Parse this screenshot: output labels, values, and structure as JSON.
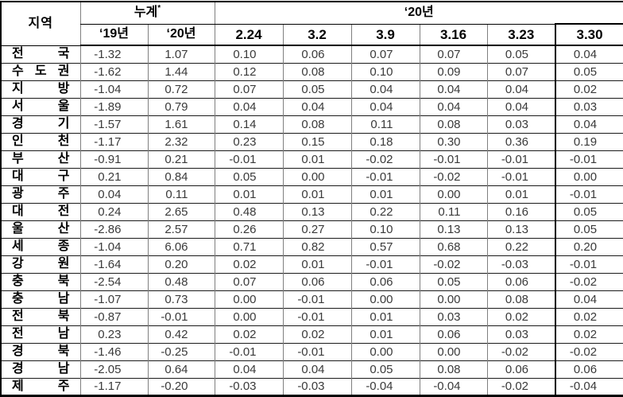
{
  "table": {
    "corner_header": "지역",
    "group_headers": {
      "cumulative": "누계",
      "cumulative_note_mark": "*",
      "year_2020": "‘20년"
    },
    "sub_headers": [
      "‘19년",
      "‘20년",
      "2.24",
      "3.2",
      "3.9",
      "3.16",
      "3.23",
      "3.30"
    ],
    "rows": [
      {
        "region": "전국",
        "values": [
          "-1.32",
          "1.07",
          "0.10",
          "0.06",
          "0.07",
          "0.07",
          "0.05",
          "0.04"
        ]
      },
      {
        "region": "수도권",
        "values": [
          "-1.62",
          "1.44",
          "0.12",
          "0.08",
          "0.10",
          "0.09",
          "0.07",
          "0.05"
        ]
      },
      {
        "region": "지방",
        "values": [
          "-1.04",
          "0.72",
          "0.07",
          "0.05",
          "0.04",
          "0.04",
          "0.04",
          "0.02"
        ]
      },
      {
        "region": "서울",
        "values": [
          "-1.89",
          "0.79",
          "0.04",
          "0.04",
          "0.04",
          "0.04",
          "0.04",
          "0.03"
        ]
      },
      {
        "region": "경기",
        "values": [
          "-1.57",
          "1.61",
          "0.14",
          "0.08",
          "0.11",
          "0.08",
          "0.03",
          "0.04"
        ]
      },
      {
        "region": "인천",
        "values": [
          "-1.17",
          "2.32",
          "0.23",
          "0.15",
          "0.18",
          "0.30",
          "0.36",
          "0.19"
        ]
      },
      {
        "region": "부산",
        "values": [
          "-0.91",
          "0.21",
          "-0.01",
          "0.01",
          "-0.02",
          "-0.01",
          "-0.01",
          "-0.01"
        ]
      },
      {
        "region": "대구",
        "values": [
          "0.21",
          "0.84",
          "0.05",
          "0.00",
          "-0.01",
          "-0.02",
          "-0.01",
          "0.00"
        ]
      },
      {
        "region": "광주",
        "values": [
          "0.04",
          "0.11",
          "0.01",
          "0.01",
          "0.01",
          "0.00",
          "0.01",
          "-0.01"
        ]
      },
      {
        "region": "대전",
        "values": [
          "0.24",
          "2.65",
          "0.48",
          "0.13",
          "0.22",
          "0.11",
          "0.16",
          "0.05"
        ]
      },
      {
        "region": "울산",
        "values": [
          "-2.86",
          "2.57",
          "0.26",
          "0.27",
          "0.10",
          "0.13",
          "0.13",
          "0.05"
        ]
      },
      {
        "region": "세종",
        "values": [
          "-1.04",
          "6.06",
          "0.71",
          "0.82",
          "0.57",
          "0.68",
          "0.22",
          "0.20"
        ]
      },
      {
        "region": "강원",
        "values": [
          "-1.64",
          "0.20",
          "0.02",
          "0.01",
          "-0.01",
          "-0.02",
          "-0.03",
          "-0.01"
        ]
      },
      {
        "region": "충북",
        "values": [
          "-2.54",
          "0.48",
          "0.07",
          "0.06",
          "0.06",
          "0.05",
          "0.06",
          "-0.02"
        ]
      },
      {
        "region": "충남",
        "values": [
          "-1.07",
          "0.73",
          "0.00",
          "-0.01",
          "0.00",
          "0.00",
          "0.08",
          "0.04"
        ]
      },
      {
        "region": "전북",
        "values": [
          "-0.87",
          "-0.01",
          "0.00",
          "-0.01",
          "0.01",
          "0.03",
          "0.02",
          "0.02"
        ]
      },
      {
        "region": "전남",
        "values": [
          "0.23",
          "0.42",
          "0.02",
          "0.02",
          "0.01",
          "0.06",
          "0.03",
          "0.02"
        ]
      },
      {
        "region": "경북",
        "values": [
          "-1.46",
          "-0.25",
          "-0.01",
          "-0.01",
          "0.00",
          "0.00",
          "-0.02",
          "-0.02"
        ]
      },
      {
        "region": "경남",
        "values": [
          "-2.05",
          "0.64",
          "0.04",
          "0.04",
          "0.05",
          "0.08",
          "0.06",
          "0.06"
        ]
      },
      {
        "region": "제주",
        "values": [
          "-1.17",
          "-0.20",
          "-0.03",
          "-0.03",
          "-0.04",
          "-0.04",
          "-0.02",
          "-0.04"
        ]
      }
    ]
  },
  "colors": {
    "frame": "#000000",
    "row_line": "#1a1a1a",
    "grid_line": "#7f7f7f",
    "number_text": "#3a3a3a",
    "header_text": "#000000",
    "background": "#ffffff"
  }
}
